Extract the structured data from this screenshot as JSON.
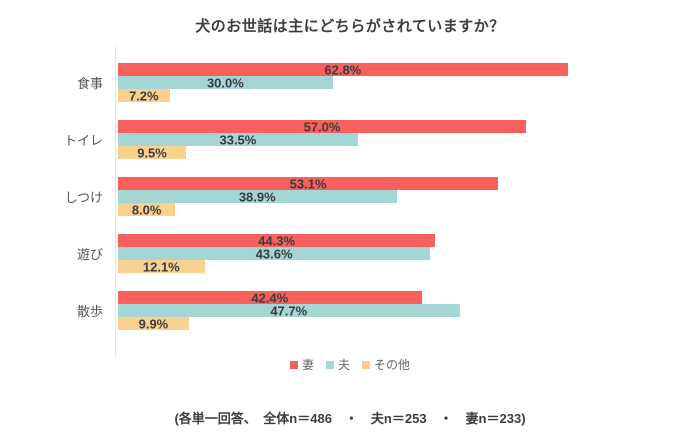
{
  "title": "犬のお世話は主にどちらがされていますか？",
  "footer_note": "(各単一回答、　全体n＝486　・　夫n＝253　・　妻n＝233)",
  "chart_data": {
    "type": "bar",
    "orientation": "horizontal",
    "title": "犬のお世話は主にどちらがされていますか？",
    "categories": [
      "食事",
      "トイレ",
      "しつけ",
      "遊び",
      "散歩"
    ],
    "series": [
      {
        "name": "妻",
        "color": "#F8605E",
        "values": [
          62.8,
          57.0,
          53.1,
          44.3,
          42.4
        ]
      },
      {
        "name": "夫",
        "color": "#A5D6D6",
        "values": [
          30.0,
          33.5,
          38.9,
          43.6,
          47.7
        ]
      },
      {
        "name": "その他",
        "color": "#FAD28F",
        "values": [
          7.2,
          9.5,
          8.0,
          12.1,
          9.9
        ]
      }
    ],
    "value_label_suffix": "%",
    "xlim": [
      0,
      80
    ],
    "grid": false,
    "legend_position": "bottom-center"
  }
}
